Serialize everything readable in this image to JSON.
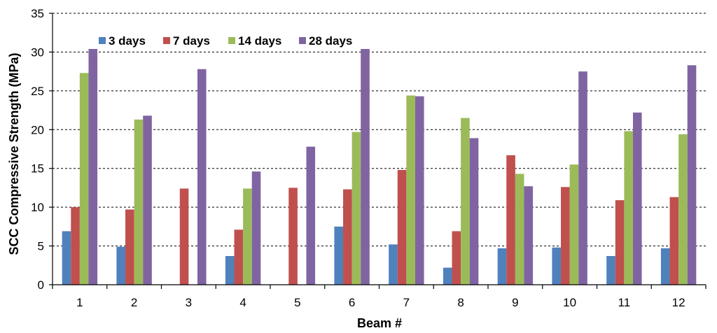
{
  "chart_data": {
    "type": "bar",
    "title": "",
    "xlabel": "Beam #",
    "ylabel": "SCC Compressive Strength (MPa)",
    "ylim": [
      0,
      35
    ],
    "ytick_step": 5,
    "grid": "horizontal dashed",
    "legend_position": "top-left",
    "categories": [
      "1",
      "2",
      "3",
      "4",
      "5",
      "6",
      "7",
      "8",
      "9",
      "10",
      "11",
      "12"
    ],
    "series": [
      {
        "name": "3 days",
        "color": "#4F81BD",
        "values": [
          6.9,
          4.9,
          null,
          3.7,
          null,
          7.5,
          5.2,
          2.2,
          4.7,
          4.8,
          3.7,
          4.7
        ]
      },
      {
        "name": "7 days",
        "color": "#C0504D",
        "values": [
          10.0,
          9.7,
          12.4,
          7.1,
          12.5,
          12.3,
          14.8,
          6.9,
          16.7,
          12.6,
          10.9,
          11.3
        ]
      },
      {
        "name": "14 days",
        "color": "#9BBB59",
        "values": [
          27.3,
          21.3,
          null,
          12.4,
          null,
          19.7,
          24.4,
          21.5,
          14.3,
          15.5,
          19.8,
          19.4
        ]
      },
      {
        "name": "28 days",
        "color": "#8064A2",
        "values": [
          30.4,
          21.8,
          27.8,
          14.6,
          17.8,
          30.4,
          24.3,
          18.9,
          12.7,
          27.5,
          22.2,
          28.3
        ]
      }
    ]
  }
}
